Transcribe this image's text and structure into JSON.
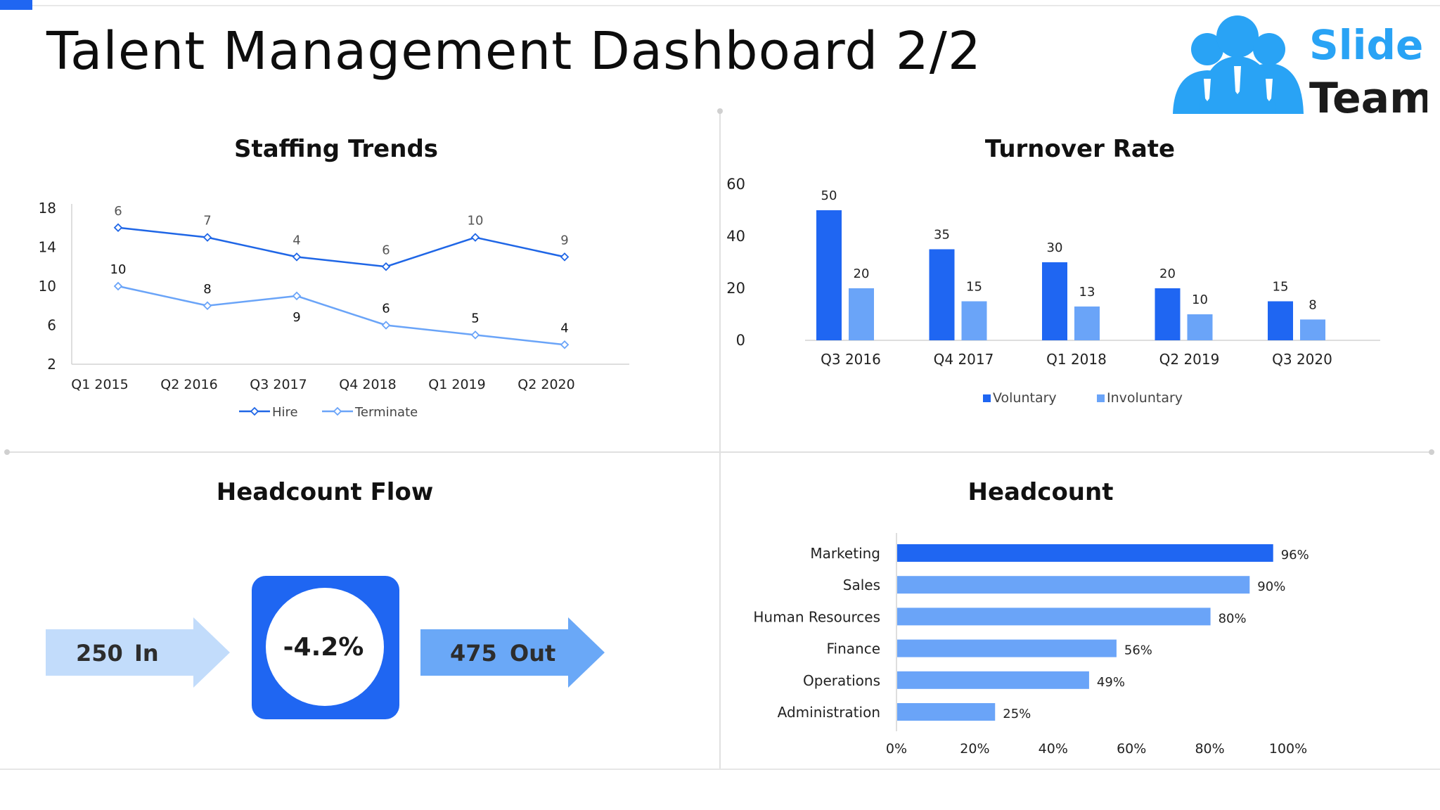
{
  "page": {
    "title": "Talent Management Dashboard 2/2",
    "logo": {
      "line1": "Slide",
      "line2": "Team"
    },
    "colors": {
      "accent": "#1f66f2",
      "light_blue": "#6aa4f8",
      "pale_blue": "#c2dcfb",
      "mid_blue": "#6aa8f7"
    }
  },
  "panels": {
    "staffing": {
      "title": "Staffing Trends"
    },
    "turnover": {
      "title": "Turnover Rate"
    },
    "flow": {
      "title": "Headcount Flow",
      "in_value": "250",
      "in_label": "In",
      "change": "-4.2%",
      "out_value": "475",
      "out_label": "Out"
    },
    "headcount": {
      "title": "Headcount"
    }
  },
  "chart_data": [
    {
      "type": "line",
      "title": "Staffing Trends",
      "categories": [
        "Q1 2015",
        "Q2 2016",
        "Q3 2017",
        "Q4 2018",
        "Q1 2019",
        "Q2 2020"
      ],
      "y_ticks": [
        2,
        6,
        10,
        14,
        18
      ],
      "ylim": [
        2,
        18
      ],
      "series": [
        {
          "name": "Hire",
          "color": "#1f66e6",
          "y": [
            16,
            15,
            13,
            12,
            15,
            13
          ],
          "labels": [
            6,
            7,
            4,
            6,
            10,
            9
          ]
        },
        {
          "name": "Terminate",
          "color": "#6aa4f8",
          "y": [
            10,
            8,
            9,
            6,
            5,
            4
          ],
          "labels": [
            10,
            8,
            9,
            6,
            5,
            4
          ]
        }
      ],
      "legend": "bottom"
    },
    {
      "type": "bar",
      "title": "Turnover Rate",
      "categories": [
        "Q3 2016",
        "Q4 2017",
        "Q1 2018",
        "Q2 2019",
        "Q3 2020"
      ],
      "y_ticks": [
        0,
        20,
        40,
        60
      ],
      "ylim": [
        0,
        60
      ],
      "series": [
        {
          "name": "Voluntary",
          "color": "#1f66f2",
          "values": [
            50,
            35,
            30,
            20,
            15
          ]
        },
        {
          "name": "Involuntary",
          "color": "#6aa4f8",
          "values": [
            20,
            15,
            13,
            10,
            8
          ]
        }
      ],
      "legend": "bottom"
    },
    {
      "type": "bar",
      "orientation": "horizontal",
      "title": "Headcount",
      "categories": [
        "Marketing",
        "Sales",
        "Human Resources",
        "Finance",
        "Operations",
        "Administration"
      ],
      "values": [
        96,
        90,
        80,
        56,
        49,
        25
      ],
      "value_labels": [
        "96%",
        "90%",
        "80%",
        "56%",
        "49%",
        "25%"
      ],
      "x_ticks": [
        "0%",
        "20%",
        "40%",
        "60%",
        "80%",
        "100%"
      ],
      "xlim": [
        0,
        100
      ],
      "colors": [
        "#1f66f2",
        "#6aa4f8",
        "#6aa4f8",
        "#6aa4f8",
        "#6aa4f8",
        "#6aa4f8"
      ]
    }
  ]
}
